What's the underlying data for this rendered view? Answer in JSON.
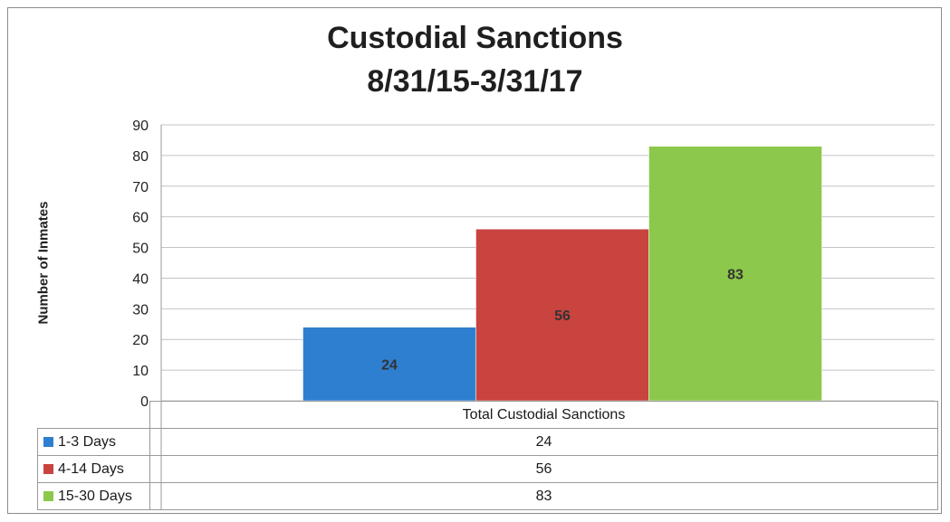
{
  "chart_data": {
    "type": "bar",
    "title": "Custodial Sanctions",
    "subtitle": "8/31/15-3/31/17",
    "ylabel": "Number of Inmates",
    "xlabel": "",
    "categories": [
      "Total Custodial Sanctions"
    ],
    "ylim": [
      0,
      90
    ],
    "yticks": [
      "0",
      "10",
      "20",
      "30",
      "40",
      "50",
      "60",
      "70",
      "80",
      "90"
    ],
    "grid": true,
    "legend": "data-table-below",
    "series": [
      {
        "name": "1-3 Days",
        "values": [
          24
        ],
        "color": "#2f7fd0",
        "value_text": "24"
      },
      {
        "name": "4-14 Days",
        "values": [
          56
        ],
        "color": "#c9433f",
        "value_text": "56"
      },
      {
        "name": "15-30 Days",
        "values": [
          83
        ],
        "color": "#8cc84b",
        "value_text": "83"
      }
    ]
  }
}
